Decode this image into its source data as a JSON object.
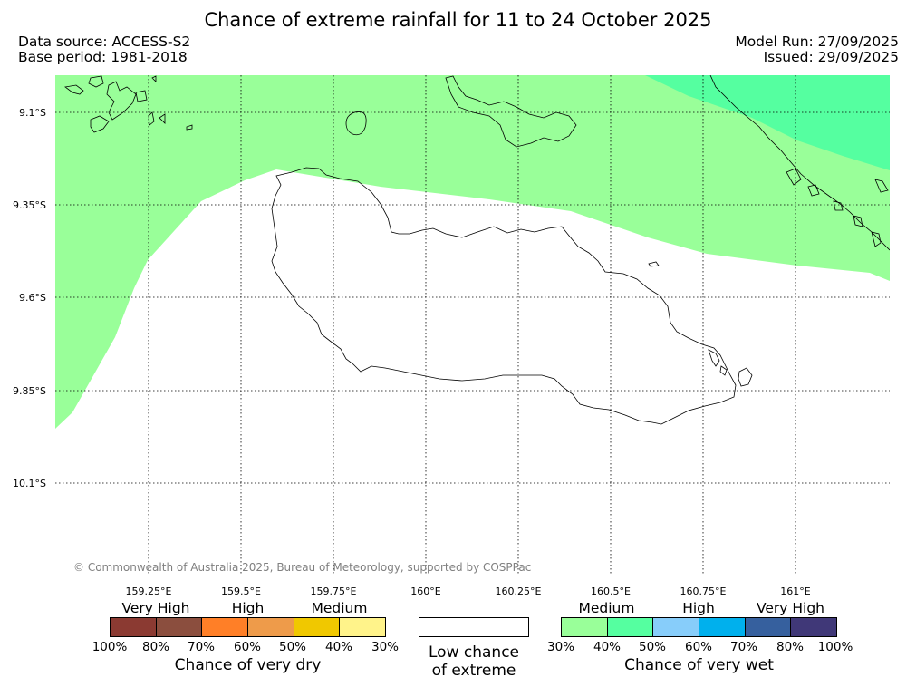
{
  "title": "Chance of extreme rainfall for 11 to 24 October 2025",
  "meta": {
    "data_source": "Data source: ACCESS-S2",
    "base_period": "Base period: 1981-2018",
    "model_run": "Model Run: 27/09/2025",
    "issued": "Issued: 29/09/2025"
  },
  "map": {
    "lat_labels": [
      "9.1°S",
      "9.35°S",
      "9.6°S",
      "9.85°S",
      "10.1°S"
    ],
    "lon_labels": [
      "159.25°E",
      "159.5°E",
      "159.75°E",
      "160°E",
      "160.25°E",
      "160.5°E",
      "160.75°E",
      "161°E"
    ],
    "copyright": "© Commonwealth of Australia 2025, Bureau of Meteorology, supported by COSPPac",
    "fill_colors": {
      "medium_wet": "#99ff99",
      "high_wet_low": "#55ffa0",
      "land_outline": "#000000"
    }
  },
  "legend": {
    "dry": {
      "label": "Chance of very dry",
      "categories": [
        "Very High",
        "High",
        "Medium"
      ],
      "colors": [
        "#8b3a32",
        "#8b4e3e",
        "#ff7f27",
        "#ee9b4a",
        "#f0c800",
        "#fff38a"
      ],
      "ticks": [
        "100%",
        "80%",
        "70%",
        "60%",
        "50%",
        "40%",
        "30%"
      ]
    },
    "neutral": {
      "label_line1": "Low chance",
      "label_line2": "of extreme",
      "color": "#ffffff"
    },
    "wet": {
      "label": "Chance of very wet",
      "categories": [
        "Medium",
        "High",
        "Very High"
      ],
      "colors": [
        "#99ff99",
        "#55ffa0",
        "#87cdfa",
        "#00b0ed",
        "#36609e",
        "#403878"
      ],
      "ticks": [
        "30%",
        "40%",
        "50%",
        "60%",
        "70%",
        "80%",
        "100%"
      ]
    }
  }
}
